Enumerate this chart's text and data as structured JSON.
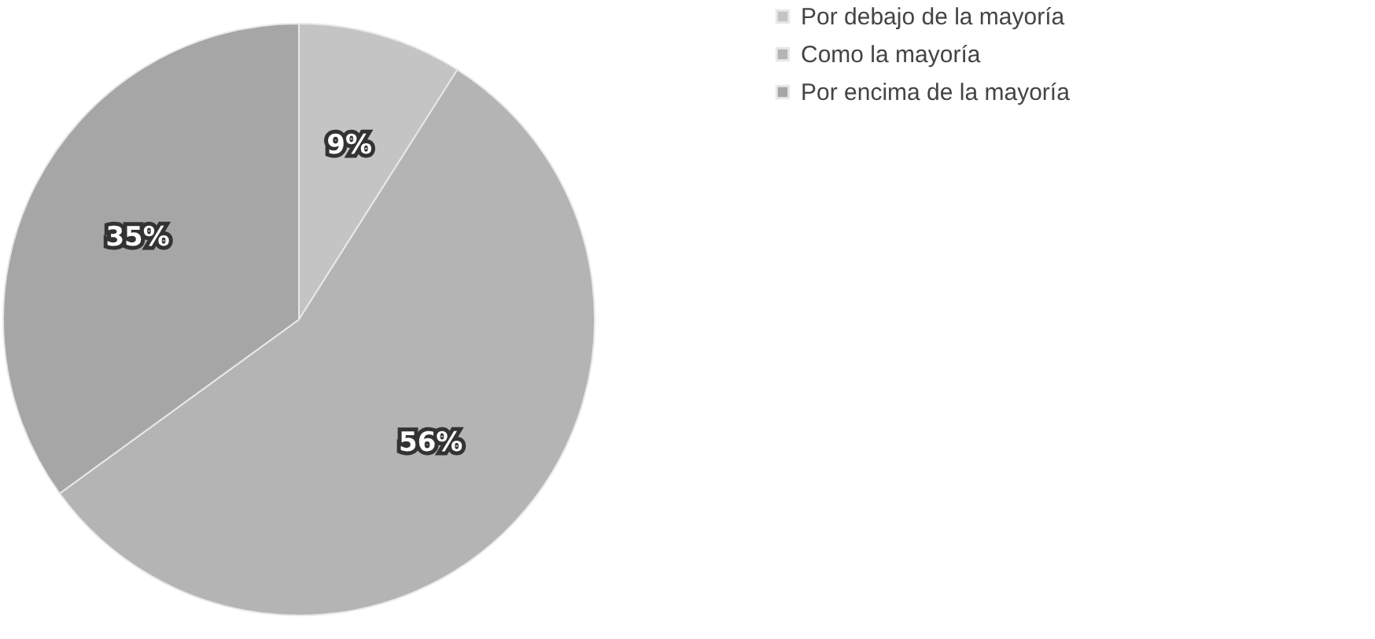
{
  "chart_data": {
    "type": "pie",
    "categories": [
      "Por debajo de la mayoría",
      "Como la mayoría",
      "Por encima de la mayoría"
    ],
    "values": [
      9,
      56,
      35
    ],
    "colors": [
      "#c4c4c4",
      "#b4b4b4",
      "#a6a6a6"
    ],
    "value_labels": [
      "9%",
      "56%",
      "35%"
    ],
    "legend": "right"
  }
}
